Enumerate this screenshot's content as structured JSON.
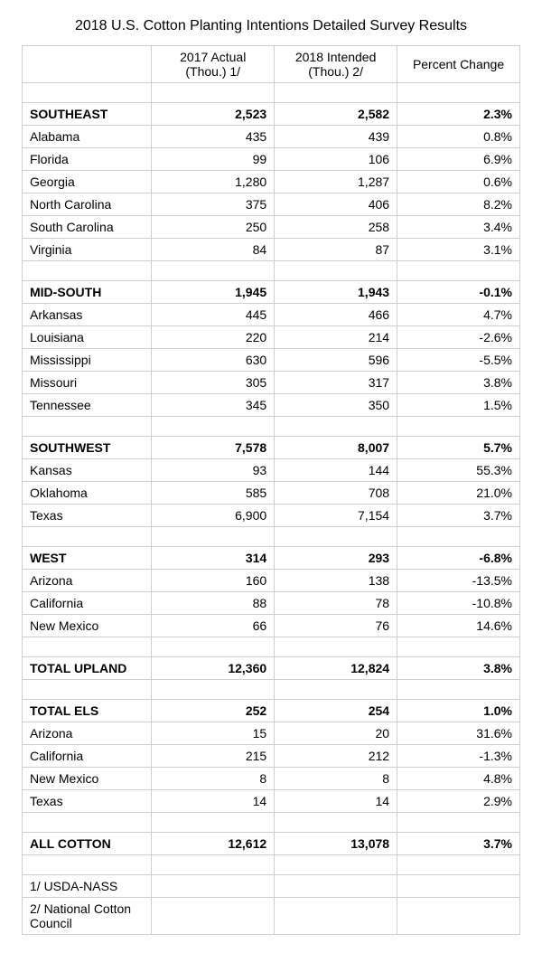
{
  "title": "2018 U.S. Cotton Planting Intentions Detailed Survey Results",
  "columns": {
    "c1": "2017 Actual (Thou.) 1/",
    "c2": "2018 Intended (Thou.) 2/",
    "c3": "Percent Change"
  },
  "sections": [
    {
      "header": {
        "label": "SOUTHEAST",
        "v1": "2,523",
        "v2": "2,582",
        "v3": "2.3%"
      },
      "rows": [
        {
          "label": "Alabama",
          "v1": "435",
          "v2": "439",
          "v3": "0.8%"
        },
        {
          "label": "Florida",
          "v1": "99",
          "v2": "106",
          "v3": "6.9%"
        },
        {
          "label": "Georgia",
          "v1": "1,280",
          "v2": "1,287",
          "v3": "0.6%"
        },
        {
          "label": "North Carolina",
          "v1": "375",
          "v2": "406",
          "v3": "8.2%"
        },
        {
          "label": "South Carolina",
          "v1": "250",
          "v2": "258",
          "v3": "3.4%"
        },
        {
          "label": "Virginia",
          "v1": "84",
          "v2": "87",
          "v3": "3.1%"
        }
      ]
    },
    {
      "header": {
        "label": "MID-SOUTH",
        "v1": "1,945",
        "v2": "1,943",
        "v3": "-0.1%"
      },
      "rows": [
        {
          "label": "Arkansas",
          "v1": "445",
          "v2": "466",
          "v3": "4.7%"
        },
        {
          "label": "Louisiana",
          "v1": "220",
          "v2": "214",
          "v3": "-2.6%"
        },
        {
          "label": "Mississippi",
          "v1": "630",
          "v2": "596",
          "v3": "-5.5%"
        },
        {
          "label": "Missouri",
          "v1": "305",
          "v2": "317",
          "v3": "3.8%"
        },
        {
          "label": "Tennessee",
          "v1": "345",
          "v2": "350",
          "v3": "1.5%"
        }
      ]
    },
    {
      "header": {
        "label": "SOUTHWEST",
        "v1": "7,578",
        "v2": "8,007",
        "v3": "5.7%"
      },
      "rows": [
        {
          "label": "Kansas",
          "v1": "93",
          "v2": "144",
          "v3": "55.3%"
        },
        {
          "label": "Oklahoma",
          "v1": "585",
          "v2": "708",
          "v3": "21.0%"
        },
        {
          "label": "Texas",
          "v1": "6,900",
          "v2": "7,154",
          "v3": "3.7%"
        }
      ]
    },
    {
      "header": {
        "label": "WEST",
        "v1": "314",
        "v2": "293",
        "v3": "-6.8%"
      },
      "rows": [
        {
          "label": "Arizona",
          "v1": "160",
          "v2": "138",
          "v3": "-13.5%"
        },
        {
          "label": "California",
          "v1": "88",
          "v2": "78",
          "v3": "-10.8%"
        },
        {
          "label": "New Mexico",
          "v1": "66",
          "v2": "76",
          "v3": "14.6%"
        }
      ]
    }
  ],
  "total_upland": {
    "label": "TOTAL UPLAND",
    "v1": "12,360",
    "v2": "12,824",
    "v3": "3.8%"
  },
  "total_els": {
    "header": {
      "label": "TOTAL ELS",
      "v1": "252",
      "v2": "254",
      "v3": "1.0%"
    },
    "rows": [
      {
        "label": "Arizona",
        "v1": "15",
        "v2": "20",
        "v3": "31.6%"
      },
      {
        "label": "California",
        "v1": "215",
        "v2": "212",
        "v3": "-1.3%"
      },
      {
        "label": "New Mexico",
        "v1": "8",
        "v2": "8",
        "v3": "4.8%"
      },
      {
        "label": "Texas",
        "v1": "14",
        "v2": "14",
        "v3": "2.9%"
      }
    ]
  },
  "all_cotton": {
    "label": "ALL COTTON",
    "v1": "12,612",
    "v2": "13,078",
    "v3": "3.7%"
  },
  "footnotes": {
    "f1": "1/ USDA-NASS",
    "f2": "2/ National Cotton Council"
  }
}
